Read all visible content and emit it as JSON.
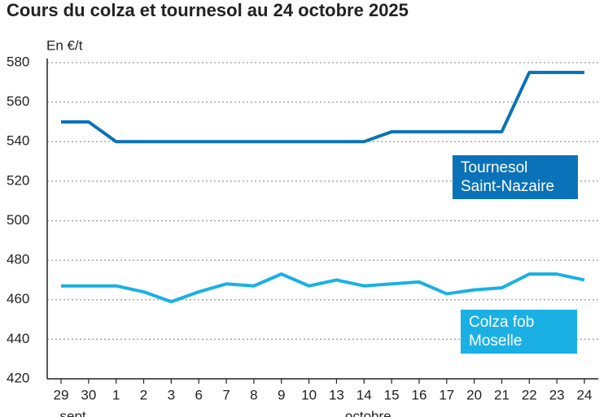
{
  "chart_data": {
    "type": "line",
    "title": "Cours du colza et tournesol au 24 octobre 2025",
    "y_label": "En €/t",
    "categories": [
      "29",
      "30",
      "1",
      "2",
      "3",
      "6",
      "7",
      "8",
      "9",
      "10",
      "13",
      "14",
      "15",
      "16",
      "17",
      "20",
      "21",
      "22",
      "23",
      "24"
    ],
    "month_labels": [
      "sept.",
      "octobre"
    ],
    "series": [
      {
        "name": "Tournesol Saint-Nazaire",
        "color": "#0a72b8",
        "values": [
          550,
          550,
          540,
          540,
          540,
          540,
          540,
          540,
          540,
          540,
          540,
          540,
          545,
          545,
          545,
          545,
          545,
          575,
          575,
          575
        ]
      },
      {
        "name": "Colza fob Moselle",
        "color": "#1ab0e4",
        "values": [
          467,
          467,
          467,
          464,
          459,
          464,
          468,
          467,
          473,
          467,
          470,
          467,
          468,
          469,
          463,
          465,
          466,
          473,
          473,
          470
        ]
      }
    ],
    "ylim": [
      420,
      580
    ],
    "yticks": [
      420,
      440,
      460,
      480,
      500,
      520,
      540,
      560,
      580
    ],
    "grid": true
  }
}
